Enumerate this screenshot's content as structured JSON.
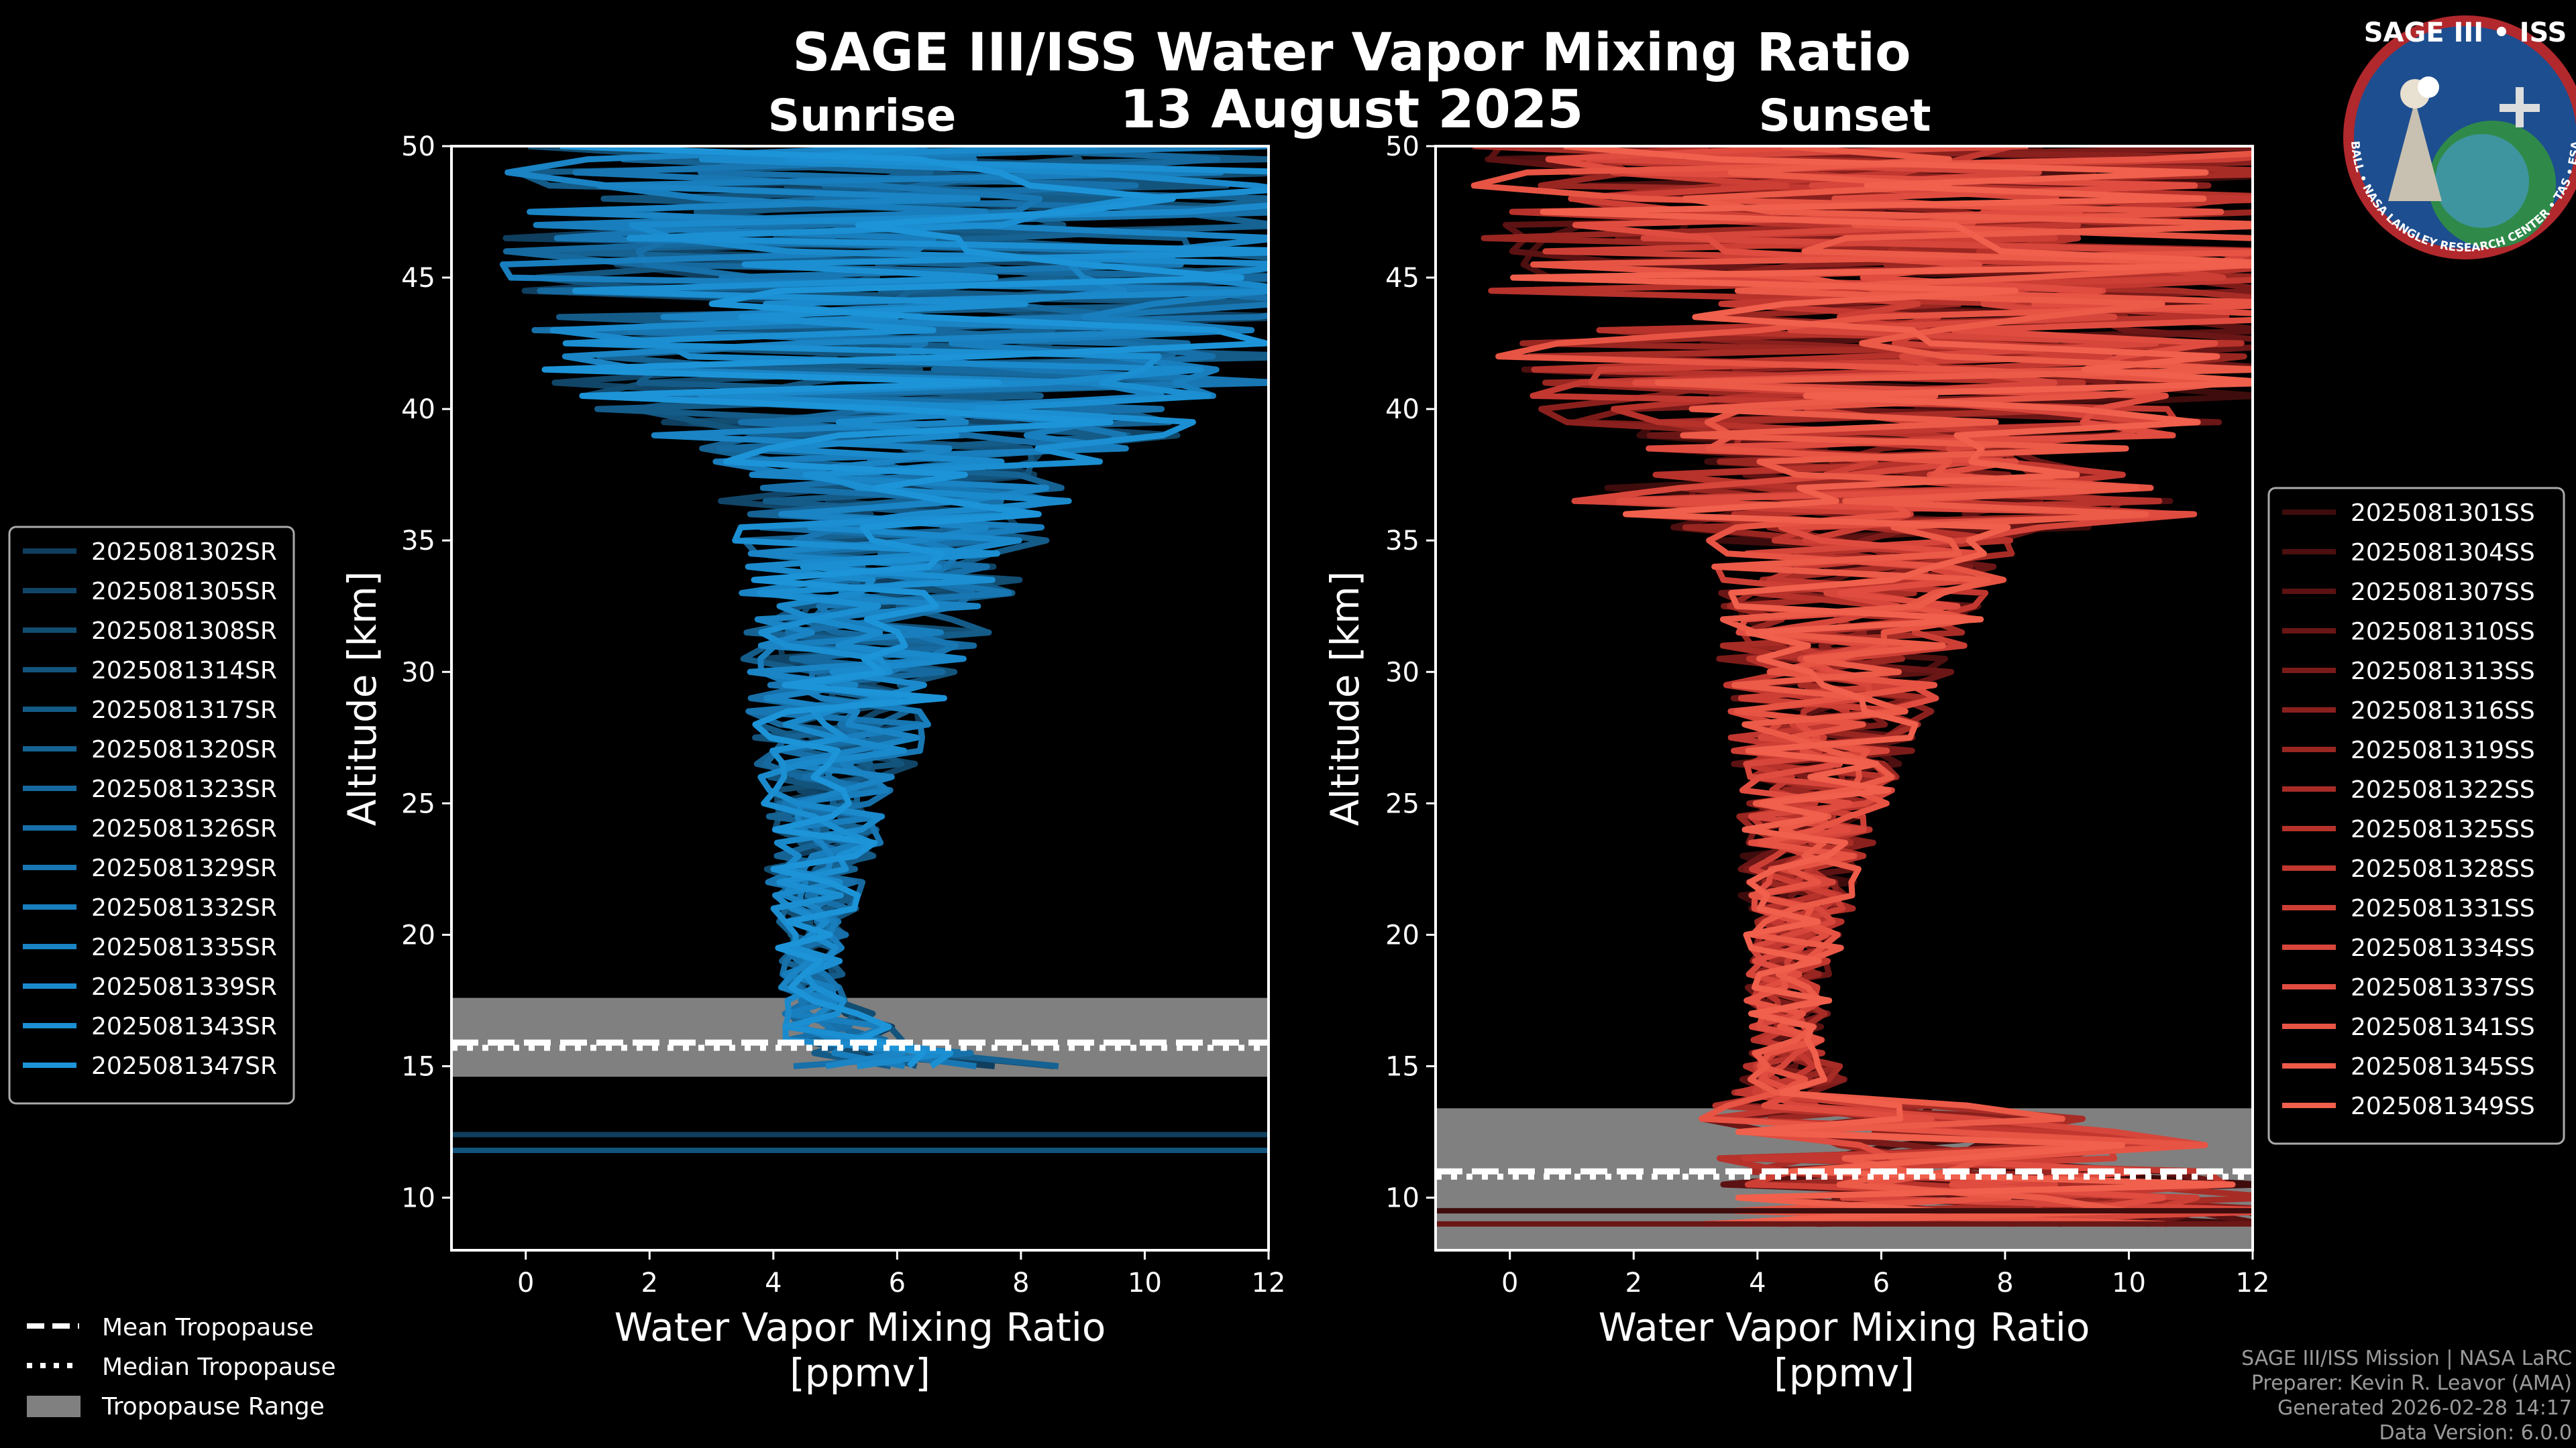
{
  "title": "SAGE III/ISS Water Vapor Mixing Ratio",
  "date": "13 August 2025",
  "logo": {
    "text": "SAGE III • ISS",
    "ring_text": "BALL • NASA LANGLEY RESEARCH CENTER • TAS • ESA"
  },
  "credits": {
    "line1": "SAGE III/ISS Mission | NASA LaRC",
    "line2": "Preparer: Kevin R. Leavor (AMA)",
    "line3": "Generated 2026-02-28 14:17",
    "line4": "Data Version: 6.0.0"
  },
  "shared_legend": {
    "mean": "Mean Tropopause",
    "median": "Median Tropopause",
    "range": "Tropopause Range"
  },
  "colors": {
    "background": "#000000",
    "sunrise_series": "#1b8fd2",
    "sunset_series": "#f05a48",
    "tropopause_range": "#808080"
  },
  "chart_data": [
    {
      "type": "line",
      "subtitle": "Sunrise",
      "xlabel_line1": "Water Vapor Mixing Ratio",
      "xlabel_line2": "[ppmv]",
      "ylabel": "Altitude [km]",
      "xlim": [
        -1.2,
        12
      ],
      "ylim": [
        8,
        50
      ],
      "xticks": [
        0,
        2,
        4,
        6,
        8,
        10,
        12
      ],
      "yticks": [
        10,
        15,
        20,
        25,
        30,
        35,
        40,
        45,
        50
      ],
      "grid": false,
      "legend_position": "left",
      "tropopause": {
        "range_km": [
          14.6,
          17.6
        ],
        "mean_km": 15.9,
        "median_km": 15.7
      },
      "series": [
        {
          "name": "2025081302SR",
          "color": "#0f3e5e"
        },
        {
          "name": "2025081305SR",
          "color": "#114567"
        },
        {
          "name": "2025081308SR",
          "color": "#124d72"
        },
        {
          "name": "2025081314SR",
          "color": "#13547d"
        },
        {
          "name": "2025081317SR",
          "color": "#145b88"
        },
        {
          "name": "2025081320SR",
          "color": "#156293"
        },
        {
          "name": "2025081323SR",
          "color": "#16699e"
        },
        {
          "name": "2025081326SR",
          "color": "#1770a9"
        },
        {
          "name": "2025081329SR",
          "color": "#1877b3"
        },
        {
          "name": "2025081332SR",
          "color": "#197ebd"
        },
        {
          "name": "2025081335SR",
          "color": "#1a84c5"
        },
        {
          "name": "2025081339SR",
          "color": "#1b8acc"
        },
        {
          "name": "2025081343SR",
          "color": "#1b8fd2"
        },
        {
          "name": "2025081347SR",
          "color": "#1d94d8"
        }
      ],
      "mean_profile": {
        "altitude_km": [
          15,
          16,
          18,
          20,
          22,
          25,
          28,
          30,
          32,
          35,
          38,
          40,
          42,
          45,
          48,
          50
        ],
        "value_ppmv": [
          6.8,
          5.2,
          4.6,
          4.6,
          4.7,
          4.9,
          5.1,
          5.3,
          5.6,
          5.9,
          6.1,
          6.3,
          6.5,
          6.6,
          6.8,
          6.9
        ],
        "spread_ppmv": [
          2.5,
          1.0,
          0.5,
          0.6,
          0.8,
          1.1,
          1.5,
          1.8,
          2.1,
          2.6,
          3.2,
          5.5,
          6.5,
          7.0,
          7.2,
          7.5
        ]
      },
      "low_lines_km": [
        12.4,
        11.8
      ]
    },
    {
      "type": "line",
      "subtitle": "Sunset",
      "xlabel_line1": "Water Vapor Mixing Ratio",
      "xlabel_line2": "[ppmv]",
      "ylabel": "Altitude [km]",
      "xlim": [
        -1.2,
        12
      ],
      "ylim": [
        8,
        50
      ],
      "xticks": [
        0,
        2,
        4,
        6,
        8,
        10,
        12
      ],
      "yticks": [
        10,
        15,
        20,
        25,
        30,
        35,
        40,
        45,
        50
      ],
      "grid": false,
      "legend_position": "right",
      "tropopause": {
        "range_km": [
          8,
          13.4
        ],
        "mean_km": 11.0,
        "median_km": 10.8
      },
      "series": [
        {
          "name": "2025081301SS",
          "color": "#3e0c0c"
        },
        {
          "name": "2025081304SS",
          "color": "#4d0f0f"
        },
        {
          "name": "2025081307SS",
          "color": "#5c1212"
        },
        {
          "name": "2025081310SS",
          "color": "#6b1616"
        },
        {
          "name": "2025081313SS",
          "color": "#7b1b19"
        },
        {
          "name": "2025081316SS",
          "color": "#8a201d"
        },
        {
          "name": "2025081319SS",
          "color": "#992621"
        },
        {
          "name": "2025081322SS",
          "color": "#a82c26"
        },
        {
          "name": "2025081325SS",
          "color": "#b6322b"
        },
        {
          "name": "2025081328SS",
          "color": "#c23830"
        },
        {
          "name": "2025081331SS",
          "color": "#cd3f35"
        },
        {
          "name": "2025081334SS",
          "color": "#d7463b"
        },
        {
          "name": "2025081337SS",
          "color": "#e04d40"
        },
        {
          "name": "2025081341SS",
          "color": "#e75444"
        },
        {
          "name": "2025081345SS",
          "color": "#ec5a48"
        },
        {
          "name": "2025081349SS",
          "color": "#f0604c"
        }
      ],
      "mean_profile": {
        "altitude_km": [
          9,
          11,
          13,
          14,
          16,
          18,
          20,
          22,
          25,
          28,
          30,
          32,
          35,
          36,
          38,
          40,
          42,
          45,
          48,
          50
        ],
        "value_ppmv": [
          8.0,
          8.0,
          6.5,
          4.6,
          4.5,
          4.5,
          4.6,
          4.7,
          4.9,
          5.1,
          5.3,
          5.5,
          5.8,
          6.0,
          6.1,
          6.3,
          6.5,
          6.6,
          6.8,
          6.9
        ],
        "spread_ppmv": [
          5.0,
          4.5,
          3.5,
          1.0,
          0.6,
          0.7,
          0.8,
          1.0,
          1.2,
          1.6,
          1.9,
          2.2,
          2.6,
          5.5,
          3.5,
          6.0,
          6.8,
          7.2,
          7.4,
          7.6
        ]
      },
      "low_lines_km": [
        9.5,
        9.0
      ]
    }
  ]
}
